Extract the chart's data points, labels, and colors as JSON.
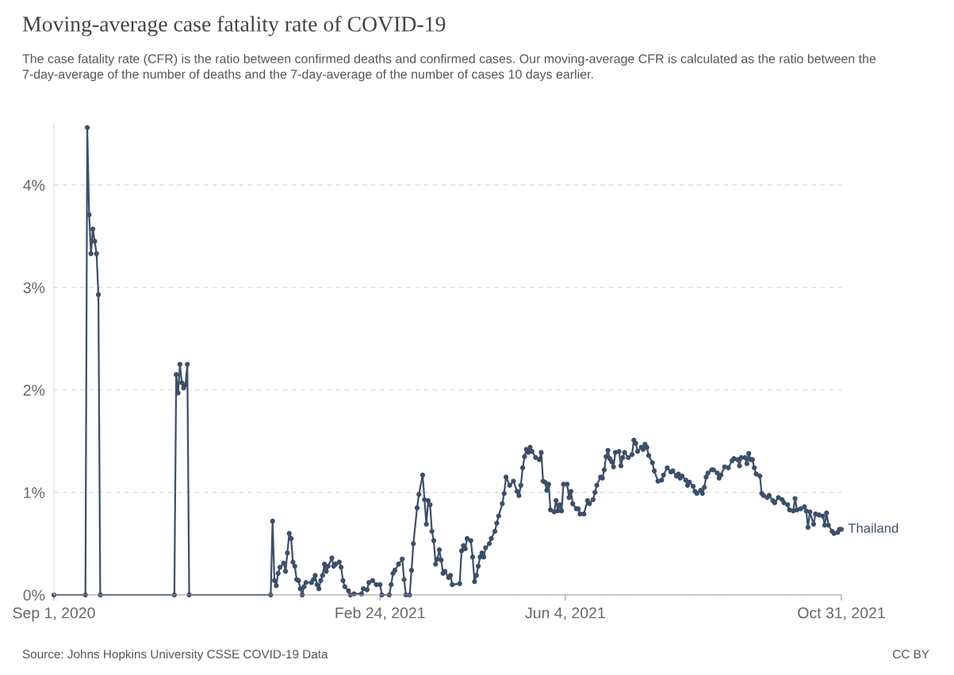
{
  "chart_data": {
    "type": "line",
    "title": "Moving-average case fatality rate of COVID-19",
    "subtitle": "The case fatality rate (CFR) is the ratio between confirmed deaths and confirmed cases. Our moving-average CFR is calculated as the ratio between the 7-day-average of the number of deaths and the 7-day-average of the number of cases 10 days earlier.",
    "annotations": [
      "Source: Johns Hopkins University CSSE COVID-19 Data",
      "CC BY"
    ],
    "xlim": [
      "2020-09-01",
      "2021-10-31"
    ],
    "xticks": [
      {
        "value": "2020-09-01",
        "label": "Sep 1, 2020"
      },
      {
        "value": "2021-02-24",
        "label": "Feb 24, 2021"
      },
      {
        "value": "2021-06-04",
        "label": "Jun 4, 2021"
      },
      {
        "value": "2021-10-31",
        "label": "Oct 31, 2021"
      }
    ],
    "ylim": [
      0,
      4.6
    ],
    "yticks": [
      {
        "value": 0,
        "label": "0%"
      },
      {
        "value": 1,
        "label": "1%"
      },
      {
        "value": 2,
        "label": "2%"
      },
      {
        "value": 3,
        "label": "3%"
      },
      {
        "value": 4,
        "label": "4%"
      }
    ],
    "grid": "y",
    "marker": "circle",
    "line_style": "solid",
    "series": [
      {
        "name": "Thailand",
        "color": "#3d4f68",
        "x": [
          "2020-09-01",
          "2020-09-18",
          "2020-09-19",
          "2020-09-20",
          "2020-09-21",
          "2020-09-22",
          "2020-09-23",
          "2020-09-24",
          "2020-09-25",
          "2020-09-26",
          "2020-11-05",
          "2020-11-06",
          "2020-11-07",
          "2020-11-08",
          "2020-11-09",
          "2020-11-10",
          "2020-11-11",
          "2020-11-12",
          "2020-11-13",
          "2020-12-27",
          "2020-12-28",
          "2020-12-29",
          "2020-12-30",
          "2020-12-31",
          "2021-01-01",
          "2021-01-03",
          "2021-01-04",
          "2021-01-05",
          "2021-01-06",
          "2021-01-07",
          "2021-01-08",
          "2021-01-09",
          "2021-01-10",
          "2021-01-11",
          "2021-01-12",
          "2021-01-13",
          "2021-01-14",
          "2021-01-15",
          "2021-01-18",
          "2021-01-19",
          "2021-01-20",
          "2021-01-21",
          "2021-01-22",
          "2021-01-23",
          "2021-01-24",
          "2021-01-25",
          "2021-01-26",
          "2021-01-27",
          "2021-01-29",
          "2021-01-30",
          "2021-01-31",
          "2021-02-02",
          "2021-02-03",
          "2021-02-04",
          "2021-02-05",
          "2021-02-07",
          "2021-02-08",
          "2021-02-10",
          "2021-02-14",
          "2021-02-15",
          "2021-02-17",
          "2021-02-18",
          "2021-02-20",
          "2021-02-22",
          "2021-02-24",
          "2021-02-25",
          "2021-03-01",
          "2021-03-02",
          "2021-03-03",
          "2021-03-04",
          "2021-03-06",
          "2021-03-08",
          "2021-03-09",
          "2021-03-10",
          "2021-03-12",
          "2021-03-13",
          "2021-03-14",
          "2021-03-16",
          "2021-03-17",
          "2021-03-19",
          "2021-03-20",
          "2021-03-21",
          "2021-03-22",
          "2021-03-23",
          "2021-03-24",
          "2021-03-25",
          "2021-03-26",
          "2021-03-27",
          "2021-03-28",
          "2021-03-29",
          "2021-03-30",
          "2021-03-31",
          "2021-04-02",
          "2021-04-03",
          "2021-04-04",
          "2021-04-08",
          "2021-04-09",
          "2021-04-10",
          "2021-04-11",
          "2021-04-12",
          "2021-04-14",
          "2021-04-15",
          "2021-04-16",
          "2021-04-17",
          "2021-04-18",
          "2021-04-19",
          "2021-04-20",
          "2021-04-21",
          "2021-04-22",
          "2021-04-24",
          "2021-04-25",
          "2021-04-27",
          "2021-04-28",
          "2021-04-29",
          "2021-05-01",
          "2021-05-02",
          "2021-05-03",
          "2021-05-05",
          "2021-05-07",
          "2021-05-09",
          "2021-05-10",
          "2021-05-11",
          "2021-05-12",
          "2021-05-13",
          "2021-05-14",
          "2021-05-15",
          "2021-05-16",
          "2021-05-17",
          "2021-05-19",
          "2021-05-21",
          "2021-05-22",
          "2021-05-23",
          "2021-05-24",
          "2021-05-25",
          "2021-05-26",
          "2021-05-27",
          "2021-05-29",
          "2021-05-30",
          "2021-05-31",
          "2021-06-01",
          "2021-06-02",
          "2021-06-03",
          "2021-06-05",
          "2021-06-06",
          "2021-06-07",
          "2021-06-08",
          "2021-06-10",
          "2021-06-11",
          "2021-06-12",
          "2021-06-14",
          "2021-06-16",
          "2021-06-17",
          "2021-06-19",
          "2021-06-20",
          "2021-06-21",
          "2021-06-23",
          "2021-06-24",
          "2021-06-25",
          "2021-06-26",
          "2021-06-27",
          "2021-06-28",
          "2021-06-29",
          "2021-06-30",
          "2021-07-01",
          "2021-07-03",
          "2021-07-04",
          "2021-07-05",
          "2021-07-06",
          "2021-07-08",
          "2021-07-10",
          "2021-07-11",
          "2021-07-12",
          "2021-07-13",
          "2021-07-15",
          "2021-07-16",
          "2021-07-17",
          "2021-07-18",
          "2021-07-19",
          "2021-07-21",
          "2021-07-22",
          "2021-07-24",
          "2021-07-26",
          "2021-07-27",
          "2021-07-29",
          "2021-07-31",
          "2021-08-01",
          "2021-08-03",
          "2021-08-04",
          "2021-08-05",
          "2021-08-06",
          "2021-08-08",
          "2021-08-09",
          "2021-08-10",
          "2021-08-12",
          "2021-08-13",
          "2021-08-14",
          "2021-08-16",
          "2021-08-17",
          "2021-08-18",
          "2021-08-19",
          "2021-08-20",
          "2021-08-22",
          "2021-08-23",
          "2021-08-25",
          "2021-08-26",
          "2021-08-27",
          "2021-08-29",
          "2021-08-31",
          "2021-09-02",
          "2021-09-03",
          "2021-09-05",
          "2021-09-06",
          "2021-09-07",
          "2021-09-09",
          "2021-09-10",
          "2021-09-11",
          "2021-09-12",
          "2021-09-13",
          "2021-09-14",
          "2021-09-15",
          "2021-09-17",
          "2021-09-18",
          "2021-09-19",
          "2021-09-21",
          "2021-09-22",
          "2021-09-24",
          "2021-09-25",
          "2021-09-27",
          "2021-09-29",
          "2021-09-30",
          "2021-10-02",
          "2021-10-03",
          "2021-10-05",
          "2021-10-06",
          "2021-10-07",
          "2021-10-09",
          "2021-10-11",
          "2021-10-12",
          "2021-10-13",
          "2021-10-14",
          "2021-10-16",
          "2021-10-17",
          "2021-10-19",
          "2021-10-21",
          "2021-10-22",
          "2021-10-23",
          "2021-10-24",
          "2021-10-26",
          "2021-10-27",
          "2021-10-29",
          "2021-10-30",
          "2021-10-31"
        ],
        "values": [
          0,
          0,
          4.56,
          3.71,
          3.33,
          3.57,
          3.45,
          3.33,
          2.93,
          0,
          0,
          2.15,
          1.97,
          2.25,
          2.07,
          2.02,
          2.05,
          2.25,
          0,
          0,
          0.72,
          0.14,
          0.09,
          0.21,
          0.27,
          0.31,
          0.23,
          0.41,
          0.6,
          0.55,
          0.32,
          0.28,
          0.15,
          0.14,
          0.06,
          0,
          0.08,
          0.12,
          0.12,
          0.15,
          0.19,
          0.1,
          0.06,
          0.14,
          0.19,
          0.3,
          0.23,
          0.28,
          0.36,
          0.28,
          0.3,
          0.32,
          0.27,
          0.14,
          0.08,
          0.04,
          0,
          0.01,
          0.01,
          0.06,
          0.05,
          0.12,
          0.14,
          0.1,
          0.1,
          0,
          0,
          0.1,
          0.21,
          0.24,
          0.3,
          0.35,
          0.15,
          0,
          0,
          0.24,
          0.5,
          0.85,
          0.98,
          1.17,
          0.93,
          0.69,
          0.92,
          0.88,
          0.62,
          0.53,
          0.3,
          0.35,
          0.44,
          0.34,
          0.21,
          0.23,
          0.17,
          0.19,
          0.1,
          0.11,
          0.43,
          0.48,
          0.45,
          0.55,
          0.53,
          0.37,
          0.13,
          0.19,
          0.28,
          0.37,
          0.41,
          0.37,
          0.46,
          0.5,
          0.55,
          0.62,
          0.7,
          0.77,
          0.89,
          0.99,
          1.15,
          1.07,
          1.11,
          1.01,
          0.97,
          1.07,
          1.24,
          1.35,
          1.42,
          1.39,
          1.44,
          1.4,
          1.34,
          1.32,
          1.39,
          1.11,
          1.1,
          1.02,
          1.08,
          0.83,
          0.81,
          0.92,
          0.82,
          0.88,
          0.82,
          1.08,
          1.08,
          0.95,
          1.01,
          0.89,
          0.84,
          0.84,
          0.79,
          0.79,
          0.92,
          0.89,
          0.93,
          1.0,
          1.07,
          1.15,
          1.14,
          1.22,
          1.35,
          1.41,
          1.33,
          1.3,
          1.25,
          1.39,
          1.4,
          1.26,
          1.34,
          1.39,
          1.34,
          1.37,
          1.51,
          1.48,
          1.4,
          1.44,
          1.42,
          1.47,
          1.44,
          1.36,
          1.29,
          1.21,
          1.11,
          1.12,
          1.17,
          1.24,
          1.2,
          1.21,
          1.16,
          1.18,
          1.14,
          1.16,
          1.12,
          1.07,
          1.1,
          1.06,
          1.01,
          0.99,
          1.02,
          0.99,
          1.05,
          1.15,
          1.19,
          1.22,
          1.22,
          1.19,
          1.14,
          1.17,
          1.25,
          1.24,
          1.31,
          1.33,
          1.32,
          1.26,
          1.34,
          1.34,
          1.28,
          1.38,
          1.32,
          1.32,
          1.24,
          1.18,
          1.16,
          0.99,
          0.97,
          0.95,
          0.97,
          0.92,
          0.9,
          0.95,
          0.93,
          0.9,
          0.88,
          0.83,
          0.82,
          0.94,
          0.83,
          0.84,
          0.86,
          0.82,
          0.66,
          0.81,
          0.69,
          0.79,
          0.78,
          0.77,
          0.68,
          0.8,
          0.68,
          0.62,
          0.6,
          0.61,
          0.64,
          0.64
        ]
      }
    ]
  }
}
